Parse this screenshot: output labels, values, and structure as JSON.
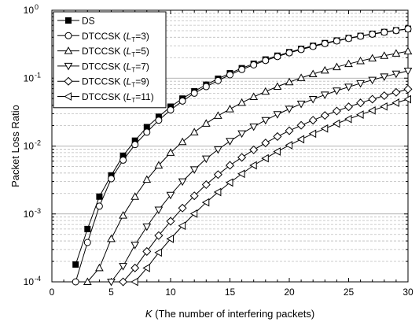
{
  "chart_data": {
    "type": "line",
    "title": "",
    "xlabel": {
      "italic": "K",
      "rest": " (The number of interfering packets)"
    },
    "ylabel": "Packet Loss Ratio",
    "xlim": [
      0,
      30
    ],
    "ylim": [
      0.0001,
      1
    ],
    "yscale": "log",
    "xticks": [
      0,
      5,
      10,
      15,
      20,
      25,
      30
    ],
    "xtick_labels": [
      "0",
      "5",
      "10",
      "15",
      "20",
      "25",
      "30"
    ],
    "yticks": [
      0.0001,
      0.001,
      0.01,
      0.1,
      1
    ],
    "ytick_labels": [
      {
        "base": "10",
        "exp": "-4"
      },
      {
        "base": "10",
        "exp": "-3"
      },
      {
        "base": "10",
        "exp": "-2"
      },
      {
        "base": "10",
        "exp": "-1"
      },
      {
        "base": "10",
        "exp": "0"
      }
    ],
    "grid": "horizontal-minor",
    "legend_position": "top-left",
    "series": [
      {
        "name": "DS",
        "label": {
          "main": "DS",
          "sub": "",
          "tail": ""
        },
        "marker": "square-filled",
        "x": [
          2,
          3,
          4,
          5,
          6,
          7,
          8,
          9,
          10,
          11,
          12,
          13,
          14,
          15,
          16,
          17,
          18,
          19,
          20,
          21,
          22,
          23,
          24,
          25,
          26,
          27,
          28,
          29,
          30
        ],
        "y": [
          0.00018,
          0.0006,
          0.0018,
          0.0037,
          0.0072,
          0.012,
          0.019,
          0.027,
          0.038,
          0.05,
          0.064,
          0.08,
          0.098,
          0.118,
          0.14,
          0.163,
          0.188,
          0.214,
          0.241,
          0.27,
          0.299,
          0.328,
          0.358,
          0.389,
          0.419,
          0.449,
          0.478,
          0.506,
          0.533
        ]
      },
      {
        "name": "DTCCSK (LT=3)",
        "label": {
          "main": "DTCCSK (",
          "sub": "T",
          "tail": "=3)"
        },
        "marker": "circle",
        "x": [
          2,
          3,
          4,
          5,
          6,
          7,
          8,
          9,
          10,
          11,
          12,
          13,
          14,
          15,
          16,
          17,
          18,
          19,
          20,
          21,
          22,
          23,
          24,
          25,
          26,
          27,
          28,
          29,
          30
        ],
        "y": [
          0.0001,
          0.00038,
          0.0013,
          0.0033,
          0.0062,
          0.0105,
          0.016,
          0.024,
          0.034,
          0.046,
          0.06,
          0.075,
          0.092,
          0.112,
          0.134,
          0.157,
          0.182,
          0.208,
          0.236,
          0.264,
          0.293,
          0.323,
          0.353,
          0.384,
          0.414,
          0.444,
          0.474,
          0.502,
          0.53
        ]
      },
      {
        "name": "DTCCSK (LT=5)",
        "label": {
          "main": "DTCCSK (",
          "sub": "T",
          "tail": "=5)"
        },
        "marker": "triangle-up",
        "x": [
          3,
          4,
          5,
          6,
          7,
          8,
          9,
          10,
          11,
          12,
          13,
          14,
          15,
          16,
          17,
          18,
          19,
          20,
          21,
          22,
          23,
          24,
          25,
          26,
          27,
          28,
          29,
          30
        ],
        "y": [
          0.0001,
          0.00016,
          0.00043,
          0.00095,
          0.0018,
          0.0032,
          0.0052,
          0.008,
          0.0115,
          0.016,
          0.0215,
          0.028,
          0.035,
          0.0435,
          0.053,
          0.0635,
          0.075,
          0.0875,
          0.101,
          0.115,
          0.13,
          0.146,
          0.162,
          0.179,
          0.196,
          0.214,
          0.231,
          0.249
        ]
      },
      {
        "name": "DTCCSK (LT=7)",
        "label": {
          "main": "DTCCSK (",
          "sub": "T",
          "tail": "=7)"
        },
        "marker": "triangle-down",
        "x": [
          5,
          6,
          7,
          8,
          9,
          10,
          11,
          12,
          13,
          14,
          15,
          16,
          17,
          18,
          19,
          20,
          21,
          22,
          23,
          24,
          25,
          26,
          27,
          28,
          29,
          30
        ],
        "y": [
          0.0001,
          0.00017,
          0.00035,
          0.00065,
          0.00115,
          0.0019,
          0.003,
          0.0045,
          0.0065,
          0.0089,
          0.0118,
          0.0153,
          0.0193,
          0.024,
          0.0293,
          0.0352,
          0.0418,
          0.049,
          0.0568,
          0.0652,
          0.0742,
          0.0838,
          0.094,
          0.105,
          0.116,
          0.128
        ]
      },
      {
        "name": "DTCCSK (LT=9)",
        "label": {
          "main": "DTCCSK (",
          "sub": "T",
          "tail": "=9)"
        },
        "marker": "diamond",
        "x": [
          6,
          7,
          8,
          9,
          10,
          11,
          12,
          13,
          14,
          15,
          16,
          17,
          18,
          19,
          20,
          21,
          22,
          23,
          24,
          25,
          26,
          27,
          28,
          29,
          30
        ],
        "y": [
          0.0001,
          0.00016,
          0.00028,
          0.00048,
          0.00078,
          0.00122,
          0.00185,
          0.0027,
          0.0038,
          0.0052,
          0.0068,
          0.0088,
          0.0111,
          0.0138,
          0.0168,
          0.0202,
          0.024,
          0.0282,
          0.0328,
          0.0378,
          0.0432,
          0.049,
          0.0552,
          0.0618,
          0.0688
        ]
      },
      {
        "name": "DTCCSK (LT=11)",
        "label": {
          "main": "DTCCSK (",
          "sub": "T",
          "tail": "=11)"
        },
        "marker": "triangle-left",
        "x": [
          7,
          8,
          9,
          10,
          11,
          12,
          13,
          14,
          15,
          16,
          17,
          18,
          19,
          20,
          21,
          22,
          23,
          24,
          25,
          26,
          27,
          28,
          29,
          30
        ],
        "y": [
          0.0001,
          0.00016,
          0.00027,
          0.00043,
          0.00067,
          0.00101,
          0.00148,
          0.0021,
          0.0029,
          0.0039,
          0.0052,
          0.0066,
          0.0083,
          0.0103,
          0.0126,
          0.0152,
          0.0181,
          0.0214,
          0.025,
          0.029,
          0.0334,
          0.0382,
          0.0434,
          0.0489
        ]
      }
    ]
  }
}
